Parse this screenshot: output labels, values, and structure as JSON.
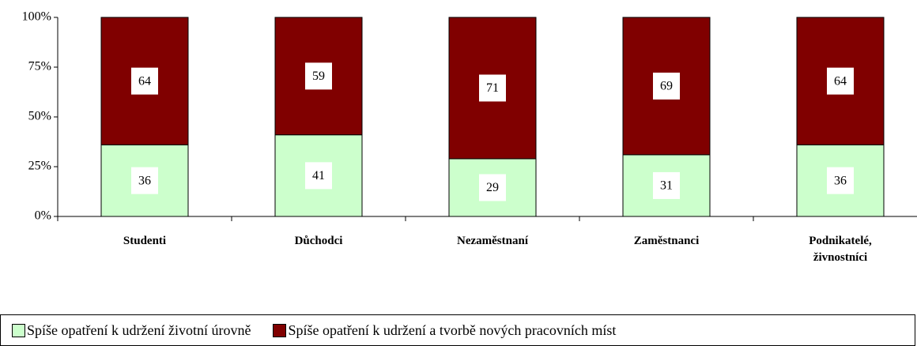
{
  "chart_data": {
    "type": "stacked_bar",
    "categories": [
      "Studenti",
      "Důchodci",
      "Nezaměstnaní",
      "Zaměstnanci",
      "Podnikatelé, živnostníci"
    ],
    "series": [
      {
        "name": "Spíše opatření k udržení životní úrovně",
        "color": "#ccffcc",
        "values": [
          36,
          41,
          29,
          31,
          36
        ]
      },
      {
        "name": "Spíše opatření k udržení a tvorbě nových pracovních míst",
        "color": "#800000",
        "values": [
          64,
          59,
          71,
          69,
          64
        ]
      }
    ],
    "ylim": [
      0,
      100
    ],
    "yticks": [
      {
        "value": 0,
        "label": "0%"
      },
      {
        "value": 25,
        "label": "25%"
      },
      {
        "value": 50,
        "label": "50%"
      },
      {
        "value": 75,
        "label": "75%"
      },
      {
        "value": 100,
        "label": "100%"
      }
    ],
    "grid": false,
    "legend": "bottom"
  }
}
